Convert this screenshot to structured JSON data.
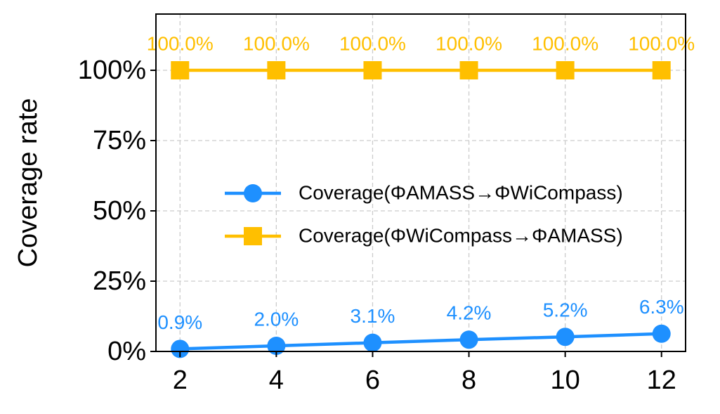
{
  "chart_data": {
    "type": "line",
    "ylabel": "Coverage rate",
    "x": [
      2,
      4,
      6,
      8,
      10,
      12
    ],
    "xlim": [
      1.5,
      12.5
    ],
    "xticks": [
      2,
      4,
      6,
      8,
      10,
      12
    ],
    "ylim": [
      0,
      120
    ],
    "yticks": [
      {
        "value": 0,
        "label": "0%"
      },
      {
        "value": 25,
        "label": "25%"
      },
      {
        "value": 50,
        "label": "50%"
      },
      {
        "value": 75,
        "label": "75%"
      },
      {
        "value": 100,
        "label": "100%"
      }
    ],
    "grid": true,
    "legend": "right",
    "series": [
      {
        "name": "Coverage(ΦAMASS→ΦWiCompass)",
        "color": "#1e90ff",
        "marker": "circle",
        "values": [
          0.9,
          2,
          3.1,
          4.2,
          5.2,
          6.3
        ],
        "value_labels": [
          "0.9%",
          "2.0%",
          "3.1%",
          "4.2%",
          "5.2%",
          "6.3%"
        ]
      },
      {
        "name": "Coverage(ΦWiCompass→ΦAMASS)",
        "color": "#ffbf00",
        "marker": "square",
        "values": [
          100,
          100,
          100,
          100,
          100,
          100
        ],
        "value_labels": [
          "100.0%",
          "100.0%",
          "100.0%",
          "100.0%",
          "100.0%",
          "100.0%"
        ]
      }
    ]
  }
}
